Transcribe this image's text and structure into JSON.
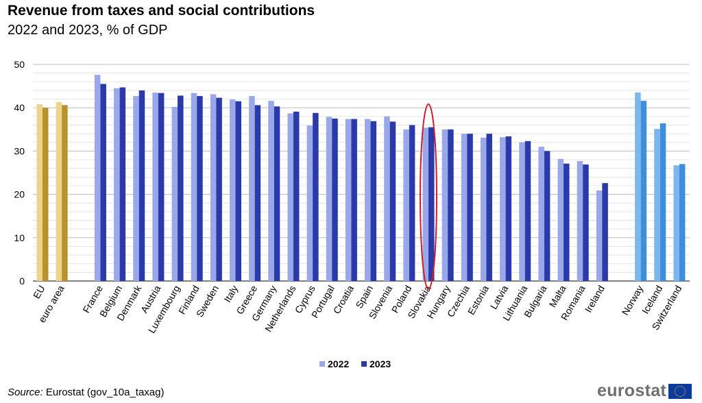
{
  "header": {
    "title": "Revenue from taxes and social contributions",
    "subtitle": "2022 and 2023, % of GDP"
  },
  "footer": {
    "source_label": "Source:",
    "source_text": " Eurostat (gov_10a_taxag)",
    "logo_text": "eurostat"
  },
  "chart_data": {
    "type": "bar",
    "ylim": [
      0,
      50
    ],
    "yticks": [
      "0",
      "10",
      "20",
      "30",
      "40",
      "50"
    ],
    "grid": true,
    "legend_position": "bottom",
    "highlight": "Slovakia",
    "colors": {
      "2022": "#9aa8ea",
      "2023": "#2a3aa8",
      "eu_2022": "#efd38a",
      "eu_2023": "#b8922a",
      "efta_2022": "#7cb6ee",
      "efta_2023": "#3d8fdc",
      "highlight": "#cc1f2b"
    },
    "series": [
      {
        "name": "2022"
      },
      {
        "name": "2023"
      }
    ],
    "groups": [
      {
        "kind": "eu",
        "categories": [
          "EU",
          "euro area"
        ],
        "v2022": [
          40.8,
          41.3
        ],
        "v2023": [
          40.0,
          40.6
        ]
      },
      {
        "kind": "ms",
        "categories": [
          "France",
          "Belgium",
          "Denmark",
          "Austria",
          "Luxembourg",
          "Finland",
          "Sweden",
          "Italy",
          "Greece",
          "Germany",
          "Netherlands",
          "Cyprus",
          "Portugal",
          "Croatia",
          "Spain",
          "Slovenia",
          "Poland",
          "Slovakia",
          "Hungary",
          "Czechia",
          "Estonia",
          "Latvia",
          "Lithuania",
          "Bulgaria",
          "Malta",
          "Romania",
          "Ireland"
        ],
        "v2022": [
          47.6,
          44.5,
          42.7,
          43.5,
          40.2,
          43.4,
          43.1,
          41.9,
          42.7,
          41.6,
          38.7,
          35.9,
          37.9,
          37.4,
          37.4,
          38.0,
          35.0,
          35.4,
          35.0,
          34.0,
          33.1,
          33.2,
          32.0,
          31.0,
          28.2,
          27.7,
          20.9
        ],
        "v2023": [
          45.5,
          44.7,
          44.0,
          43.4,
          42.8,
          42.7,
          42.3,
          41.5,
          40.6,
          40.3,
          39.1,
          38.8,
          37.5,
          37.4,
          36.9,
          36.8,
          36.0,
          35.5,
          35.0,
          34.0,
          34.0,
          33.4,
          32.3,
          30.0,
          27.1,
          26.9,
          22.6
        ]
      },
      {
        "kind": "efta",
        "categories": [
          "Norway",
          "Iceland",
          "Switzerland"
        ],
        "v2022": [
          43.5,
          35.1,
          26.7
        ],
        "v2023": [
          41.6,
          36.4,
          27.0
        ]
      }
    ]
  }
}
